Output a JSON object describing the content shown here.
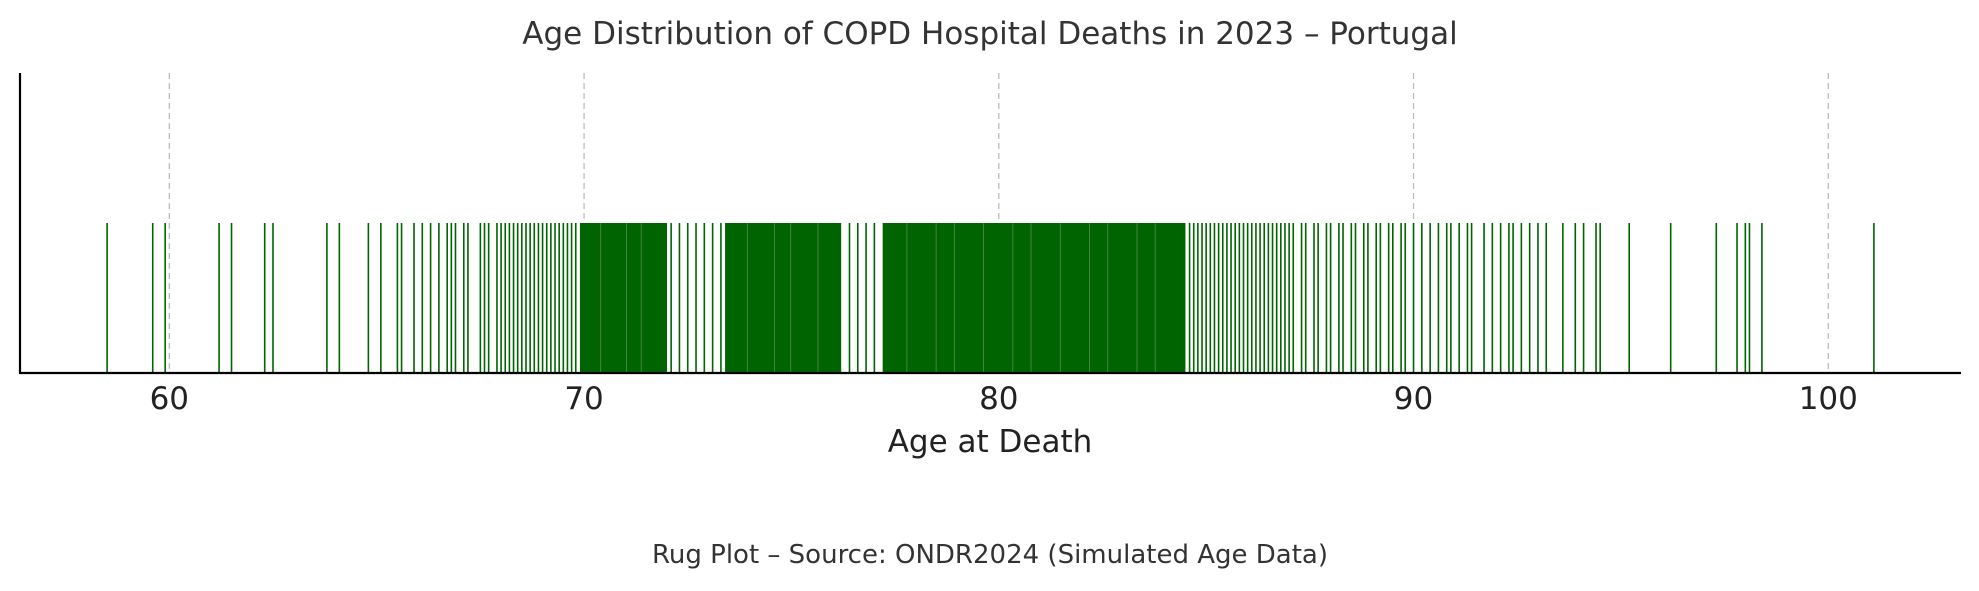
{
  "chart_data": {
    "type": "rug",
    "title": "Age Distribution of COPD Hospital Deaths in 2023 – Portugal",
    "xlabel": "Age at Death",
    "caption": "Rug Plot – Source: ONDR2024 (Simulated Age Data)",
    "xlim": [
      56.4,
      103.2
    ],
    "xticks": [
      60,
      70,
      80,
      90,
      100
    ],
    "grid": true,
    "grid_axis": "x",
    "color": "#006400",
    "dense_ranges": [
      [
        69.9,
        72.0
      ],
      [
        73.4,
        76.2
      ],
      [
        77.2,
        84.5
      ]
    ],
    "values": [
      58.5,
      59.6,
      59.9,
      61.2,
      61.5,
      62.3,
      62.5,
      63.8,
      64.1,
      64.8,
      65.1,
      65.5,
      65.6,
      65.9,
      66.1,
      66.3,
      66.5,
      66.7,
      66.8,
      66.9,
      67.1,
      67.2,
      67.5,
      67.6,
      67.7,
      67.9,
      68.0,
      68.1,
      68.2,
      68.3,
      68.4,
      68.5,
      68.6,
      68.7,
      68.8,
      68.9,
      69.0,
      69.1,
      69.2,
      69.3,
      69.4,
      69.5,
      69.6,
      69.7,
      69.8,
      72.1,
      72.3,
      72.5,
      72.7,
      72.9,
      73.1,
      73.3,
      76.4,
      76.6,
      76.8,
      77.0,
      84.6,
      84.7,
      84.8,
      84.9,
      85.0,
      85.1,
      85.2,
      85.3,
      85.4,
      85.5,
      85.6,
      85.7,
      85.8,
      85.9,
      86.0,
      86.1,
      86.2,
      86.3,
      86.4,
      86.5,
      86.6,
      86.7,
      86.8,
      86.9,
      87.0,
      87.1,
      87.3,
      87.4,
      87.6,
      87.7,
      87.9,
      88.0,
      88.2,
      88.3,
      88.5,
      88.6,
      88.8,
      88.9,
      89.1,
      89.2,
      89.4,
      89.5,
      89.7,
      89.8,
      90.0,
      90.2,
      90.4,
      90.6,
      90.8,
      90.9,
      91.1,
      91.3,
      91.4,
      91.7,
      91.9,
      92.1,
      92.3,
      92.4,
      92.6,
      92.8,
      93.0,
      93.2,
      93.6,
      93.9,
      94.1,
      94.4,
      94.5,
      95.2,
      96.2,
      97.3,
      97.8,
      98.0,
      98.1,
      98.4,
      101.1
    ]
  }
}
